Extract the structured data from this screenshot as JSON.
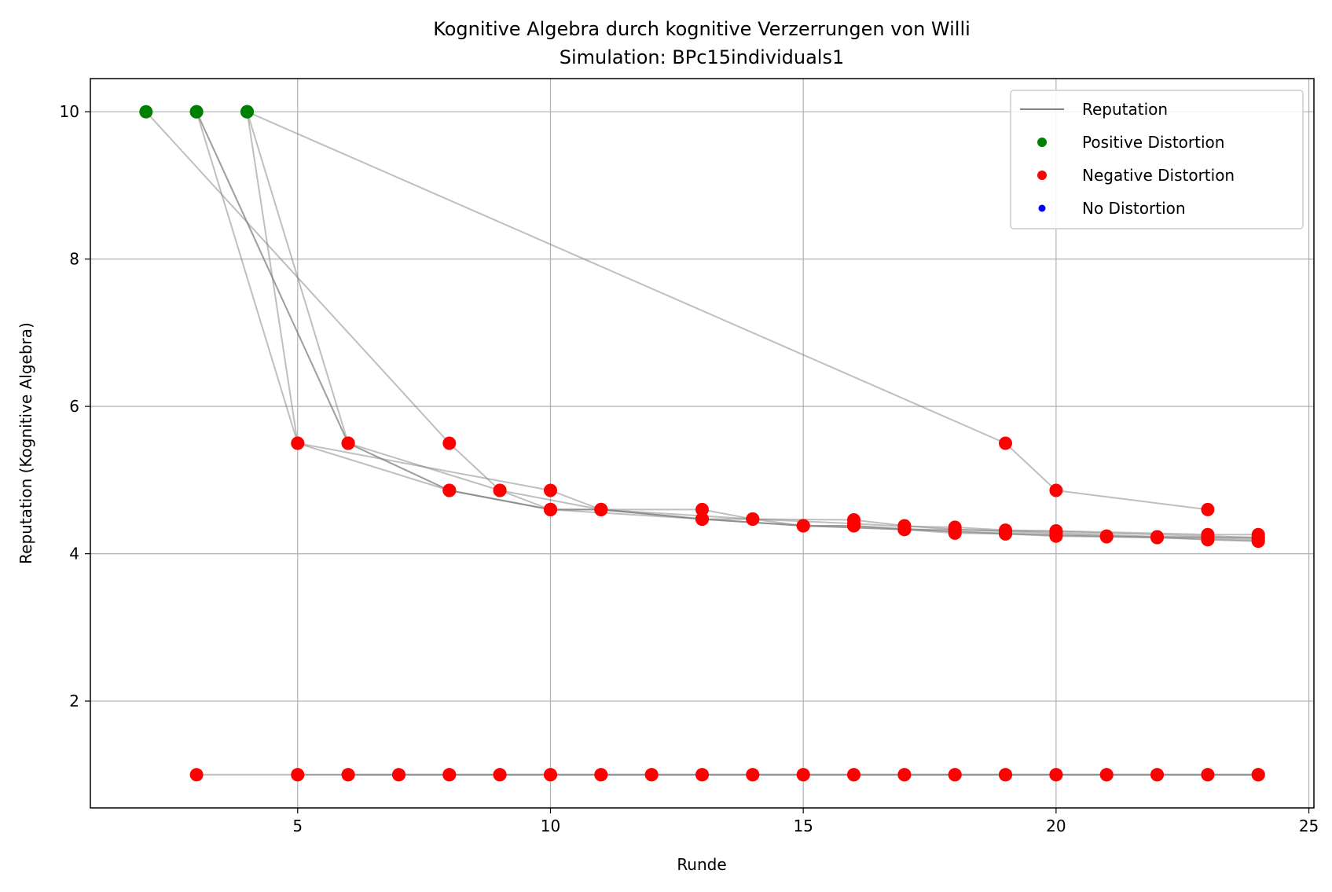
{
  "chart_data": {
    "type": "line",
    "title": "Kognitive Algebra durch kognitive Verzerrungen von Willi",
    "subtitle": "Simulation: BPc15individuals1",
    "xlabel": "Runde",
    "ylabel": "Reputation (Kognitive Algebra)",
    "xlim": [
      0.9,
      25.1
    ],
    "ylim": [
      0.55,
      10.45
    ],
    "xticks": [
      5,
      10,
      15,
      20,
      25
    ],
    "yticks": [
      2,
      4,
      6,
      8,
      10
    ],
    "grid": true,
    "legend_position": "top-right",
    "legend": [
      {
        "label": "Reputation",
        "kind": "line",
        "color": "#808080"
      },
      {
        "label": "Positive Distortion",
        "kind": "marker",
        "color": "#008000"
      },
      {
        "label": "Negative Distortion",
        "kind": "marker",
        "color": "#ff0000"
      },
      {
        "label": "No Distortion",
        "kind": "marker",
        "color": "#0000ff"
      }
    ],
    "colors": {
      "reputation": "#808080",
      "positive": "#008000",
      "negative": "#ff0000",
      "none": "#0000ff"
    },
    "series": [
      {
        "points": [
          [
            2,
            10
          ],
          [
            8,
            5.5
          ],
          [
            9,
            4.86
          ],
          [
            10,
            4.6
          ],
          [
            11,
            4.6
          ],
          [
            13,
            4.47
          ],
          [
            14,
            4.47
          ],
          [
            15,
            4.38
          ],
          [
            16,
            4.38
          ],
          [
            17,
            4.33
          ],
          [
            18,
            4.28
          ],
          [
            19,
            4.27
          ],
          [
            20,
            4.24
          ],
          [
            21,
            4.23
          ],
          [
            22,
            4.22
          ],
          [
            23,
            4.19
          ],
          [
            24,
            4.17
          ]
        ],
        "distortions": [
          "positive",
          "negative",
          "negative",
          "negative",
          "negative",
          "negative",
          "negative",
          "negative",
          "negative",
          "negative",
          "negative",
          "negative",
          "negative",
          "negative",
          "negative",
          "negative",
          "negative"
        ]
      },
      {
        "points": [
          [
            3,
            10
          ],
          [
            5,
            5.5
          ],
          [
            8,
            4.86
          ],
          [
            10,
            4.6
          ],
          [
            13,
            4.47
          ],
          [
            15,
            4.38
          ],
          [
            17,
            4.33
          ],
          [
            19,
            4.28
          ],
          [
            21,
            4.24
          ],
          [
            23,
            4.22
          ],
          [
            24,
            4.2
          ]
        ],
        "distortions": [
          "positive",
          "negative",
          "negative",
          "negative",
          "negative",
          "negative",
          "negative",
          "negative",
          "negative",
          "negative",
          "negative"
        ]
      },
      {
        "points": [
          [
            3,
            10
          ],
          [
            6,
            5.5
          ],
          [
            8,
            4.86
          ],
          [
            10,
            4.6
          ],
          [
            13,
            4.6
          ],
          [
            14,
            4.47
          ],
          [
            16,
            4.46
          ],
          [
            17,
            4.38
          ],
          [
            18,
            4.33
          ],
          [
            19,
            4.31
          ],
          [
            20,
            4.3
          ],
          [
            23,
            4.24
          ],
          [
            24,
            4.22
          ]
        ],
        "distortions": [
          "positive",
          "negative",
          "negative",
          "negative",
          "negative",
          "negative",
          "negative",
          "negative",
          "negative",
          "negative",
          "negative",
          "negative",
          "negative"
        ]
      },
      {
        "points": [
          [
            3,
            10
          ],
          [
            6,
            5.5
          ],
          [
            8,
            4.86
          ],
          [
            10,
            4.6
          ],
          [
            11,
            4.6
          ],
          [
            13,
            4.47
          ],
          [
            15,
            4.38
          ],
          [
            16,
            4.38
          ],
          [
            18,
            4.3
          ],
          [
            19,
            4.27
          ],
          [
            20,
            4.25
          ],
          [
            22,
            4.22
          ],
          [
            23,
            4.2
          ],
          [
            24,
            4.18
          ]
        ],
        "distortions": [
          "positive",
          "negative",
          "negative",
          "negative",
          "negative",
          "negative",
          "negative",
          "negative",
          "negative",
          "negative",
          "negative",
          "negative",
          "negative",
          "negative"
        ]
      },
      {
        "points": [
          [
            4,
            10
          ],
          [
            5,
            5.5
          ],
          [
            10,
            4.86
          ],
          [
            11,
            4.6
          ],
          [
            14,
            4.47
          ],
          [
            16,
            4.41
          ],
          [
            17,
            4.37
          ],
          [
            18,
            4.36
          ],
          [
            19,
            4.32
          ],
          [
            20,
            4.31
          ],
          [
            23,
            4.26
          ],
          [
            24,
            4.26
          ]
        ],
        "distortions": [
          "positive",
          "negative",
          "negative",
          "negative",
          "negative",
          "negative",
          "negative",
          "negative",
          "negative",
          "negative",
          "negative",
          "negative"
        ]
      },
      {
        "points": [
          [
            4,
            10
          ],
          [
            6,
            5.5
          ],
          [
            9,
            4.86
          ],
          [
            11,
            4.6
          ],
          [
            13,
            4.47
          ],
          [
            15,
            4.38
          ],
          [
            17,
            4.33
          ],
          [
            18,
            4.33
          ],
          [
            20,
            4.28
          ],
          [
            22,
            4.23
          ],
          [
            24,
            4.22
          ]
        ],
        "distortions": [
          "positive",
          "negative",
          "negative",
          "negative",
          "negative",
          "negative",
          "negative",
          "negative",
          "negative",
          "negative",
          "negative"
        ]
      },
      {
        "points": [
          [
            4,
            10
          ],
          [
            19,
            5.5
          ],
          [
            20,
            4.86
          ],
          [
            23,
            4.6
          ]
        ],
        "distortions": [
          "positive",
          "negative",
          "negative",
          "negative"
        ]
      },
      {
        "points": [
          [
            3,
            1
          ],
          [
            5,
            1
          ],
          [
            7,
            1
          ],
          [
            9,
            1
          ],
          [
            11,
            1
          ],
          [
            13,
            1
          ],
          [
            15,
            1
          ],
          [
            17,
            1
          ],
          [
            19,
            1
          ],
          [
            21,
            1
          ],
          [
            23,
            1
          ],
          [
            24,
            1
          ]
        ],
        "distortions": [
          "negative",
          "negative",
          "negative",
          "negative",
          "negative",
          "negative",
          "negative",
          "negative",
          "negative",
          "negative",
          "negative",
          "negative"
        ]
      },
      {
        "points": [
          [
            5,
            1
          ],
          [
            6,
            1
          ],
          [
            8,
            1
          ],
          [
            10,
            1
          ],
          [
            12,
            1
          ],
          [
            14,
            1
          ],
          [
            16,
            1
          ],
          [
            18,
            1
          ],
          [
            20,
            1
          ],
          [
            22,
            1
          ],
          [
            24,
            1
          ]
        ],
        "distortions": [
          "negative",
          "negative",
          "negative",
          "negative",
          "negative",
          "negative",
          "negative",
          "negative",
          "negative",
          "negative",
          "negative"
        ]
      },
      {
        "points": [
          [
            6,
            1
          ],
          [
            7,
            1
          ],
          [
            8,
            1
          ],
          [
            9,
            1
          ],
          [
            10,
            1
          ],
          [
            11,
            1
          ],
          [
            12,
            1
          ],
          [
            13,
            1
          ],
          [
            14,
            1
          ],
          [
            15,
            1
          ],
          [
            16,
            1
          ],
          [
            17,
            1
          ],
          [
            18,
            1
          ],
          [
            19,
            1
          ],
          [
            20,
            1
          ],
          [
            21,
            1
          ],
          [
            22,
            1
          ],
          [
            23,
            1
          ],
          [
            24,
            1
          ]
        ],
        "distortions": [
          "negative",
          "negative",
          "negative",
          "negative",
          "negative",
          "negative",
          "negative",
          "negative",
          "negative",
          "negative",
          "negative",
          "negative",
          "negative",
          "negative",
          "negative",
          "negative",
          "negative",
          "negative",
          "negative"
        ]
      }
    ]
  }
}
